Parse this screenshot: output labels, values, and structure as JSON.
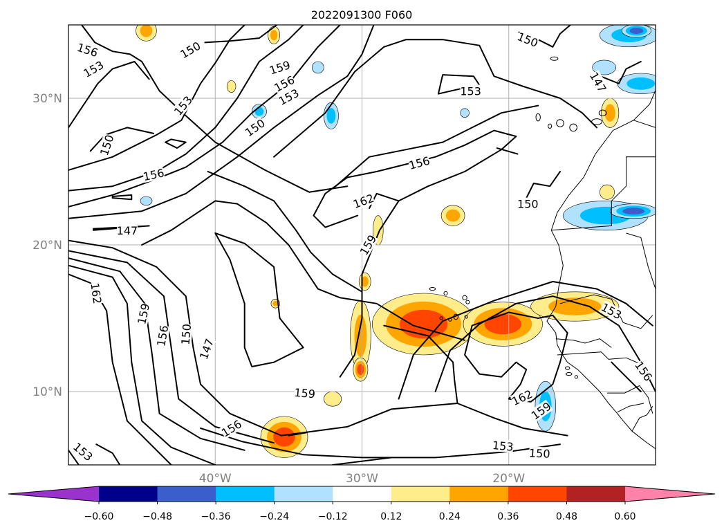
{
  "chart_data": {
    "type": "contour-map",
    "title": "2022091300 F060",
    "map": {
      "lon_range": [
        -50,
        -10
      ],
      "lat_range": [
        5,
        35
      ],
      "coastlines": true
    },
    "x_ticks": [
      {
        "value": -40,
        "label": "40°W"
      },
      {
        "value": -30,
        "label": "30°W"
      },
      {
        "value": -20,
        "label": "20°W"
      }
    ],
    "y_ticks": [
      {
        "value": 10,
        "label": "10°N"
      },
      {
        "value": 20,
        "label": "20°N"
      },
      {
        "value": 30,
        "label": "30°N"
      }
    ],
    "grid": true,
    "contour_levels": [
      147,
      150,
      153,
      156,
      159,
      162
    ],
    "contour_labels": [
      {
        "text": "156",
        "lon": -48.7,
        "lat": 33.3,
        "rot": 18
      },
      {
        "text": "153",
        "lon": -48.3,
        "lat": 32.0,
        "rot": -30
      },
      {
        "text": "150",
        "lon": -41.7,
        "lat": 33.3,
        "rot": -30
      },
      {
        "text": "159",
        "lon": -35.6,
        "lat": 32.1,
        "rot": -18
      },
      {
        "text": "156",
        "lon": -35.3,
        "lat": 31.0,
        "rot": -28
      },
      {
        "text": "153",
        "lon": -35.0,
        "lat": 30.1,
        "rot": -28
      },
      {
        "text": "153",
        "lon": -42.2,
        "lat": 29.5,
        "rot": -50
      },
      {
        "text": "150",
        "lon": -37.3,
        "lat": 28.0,
        "rot": -35
      },
      {
        "text": "150",
        "lon": -47.4,
        "lat": 26.8,
        "rot": -72
      },
      {
        "text": "156",
        "lon": -44.2,
        "lat": 24.8,
        "rot": -12
      },
      {
        "text": "147",
        "lon": -46.0,
        "lat": 21.0,
        "rot": 0
      },
      {
        "text": "150",
        "lon": -18.7,
        "lat": 34.0,
        "rot": 22
      },
      {
        "text": "153",
        "lon": -22.6,
        "lat": 30.5,
        "rot": 0
      },
      {
        "text": "147",
        "lon": -13.9,
        "lat": 31.1,
        "rot": 60
      },
      {
        "text": "156",
        "lon": -26.1,
        "lat": 25.6,
        "rot": -15
      },
      {
        "text": "162",
        "lon": -29.9,
        "lat": 23.0,
        "rot": -20
      },
      {
        "text": "150",
        "lon": -18.7,
        "lat": 22.8,
        "rot": 0
      },
      {
        "text": "159",
        "lon": -29.6,
        "lat": 20.0,
        "rot": -60
      },
      {
        "text": "162",
        "lon": -48.1,
        "lat": 16.7,
        "rot": 82
      },
      {
        "text": "159",
        "lon": -44.9,
        "lat": 15.3,
        "rot": -78
      },
      {
        "text": "156",
        "lon": -43.6,
        "lat": 13.8,
        "rot": -80
      },
      {
        "text": "150",
        "lon": -42.0,
        "lat": 13.9,
        "rot": -85
      },
      {
        "text": "147",
        "lon": -40.6,
        "lat": 12.9,
        "rot": -70
      },
      {
        "text": "153",
        "lon": -13.0,
        "lat": 15.5,
        "rot": 28
      },
      {
        "text": "156",
        "lon": -10.8,
        "lat": 11.4,
        "rot": 55
      },
      {
        "text": "159",
        "lon": -33.9,
        "lat": 9.9,
        "rot": 5
      },
      {
        "text": "156",
        "lon": -38.9,
        "lat": 7.5,
        "rot": -32
      },
      {
        "text": "162",
        "lon": -19.1,
        "lat": 9.6,
        "rot": -25
      },
      {
        "text": "159",
        "lon": -17.8,
        "lat": 8.7,
        "rot": -35
      },
      {
        "text": "153",
        "lon": -49.0,
        "lat": 5.9,
        "rot": 40
      },
      {
        "text": "153",
        "lon": -20.4,
        "lat": 6.3,
        "rot": 5
      },
      {
        "text": "150",
        "lon": -17.9,
        "lat": 5.8,
        "rot": 3
      }
    ],
    "shading": {
      "levels": [
        -0.6,
        -0.48,
        -0.36,
        -0.24,
        -0.12,
        0.12,
        0.24,
        0.36,
        0.48,
        0.6
      ],
      "colors": [
        "#9a32cd",
        "#00008b",
        "#3a5fcd",
        "#00bfff",
        "#b0e2ff",
        "#ffffff",
        "#ffec8b",
        "#ffa500",
        "#ff4500",
        "#b22222",
        "#ff82ab"
      ],
      "features": [
        {
          "lon": -25.8,
          "lat": 14.6,
          "rx": 3.5,
          "ry": 2.1,
          "value": 0.42
        },
        {
          "lon": -20.4,
          "lat": 14.6,
          "rx": 2.7,
          "ry": 1.5,
          "value": 0.38
        },
        {
          "lon": -15.5,
          "lat": 15.8,
          "rx": 3.0,
          "ry": 1.0,
          "value": 0.34
        },
        {
          "lon": -30.1,
          "lat": 13.8,
          "rx": 0.7,
          "ry": 2.4,
          "value": 0.3
        },
        {
          "lon": -30.1,
          "lat": 11.5,
          "rx": 0.5,
          "ry": 0.8,
          "value": 0.38
        },
        {
          "lon": -29.8,
          "lat": 17.5,
          "rx": 0.4,
          "ry": 0.6,
          "value": 0.3
        },
        {
          "lon": -28.9,
          "lat": 21.0,
          "rx": 0.35,
          "ry": 1.0,
          "value": 0.22
        },
        {
          "lon": -35.3,
          "lat": 6.9,
          "rx": 1.6,
          "ry": 1.4,
          "value": 0.42
        },
        {
          "lon": -44.7,
          "lat": 34.6,
          "rx": 0.7,
          "ry": 0.7,
          "value": 0.34
        },
        {
          "lon": -36.0,
          "lat": 34.3,
          "rx": 0.4,
          "ry": 0.6,
          "value": 0.25
        },
        {
          "lon": -38.9,
          "lat": 30.8,
          "rx": 0.3,
          "ry": 0.4,
          "value": 0.2
        },
        {
          "lon": -35.9,
          "lat": 16.0,
          "rx": 0.3,
          "ry": 0.3,
          "value": 0.25
        },
        {
          "lon": -32.0,
          "lat": 9.5,
          "rx": 0.6,
          "ry": 0.5,
          "value": 0.2
        },
        {
          "lon": -23.8,
          "lat": 22.0,
          "rx": 0.8,
          "ry": 0.7,
          "value": 0.3
        },
        {
          "lon": -13.1,
          "lat": 29.0,
          "rx": 0.6,
          "ry": 1.0,
          "value": 0.3
        },
        {
          "lon": -13.3,
          "lat": 23.6,
          "rx": 0.5,
          "ry": 0.5,
          "value": 0.15
        },
        {
          "lon": -13.4,
          "lat": 22.0,
          "rx": 2.9,
          "ry": 1.0,
          "value": -0.3
        },
        {
          "lon": -11.5,
          "lat": 22.3,
          "rx": 1.6,
          "ry": 0.5,
          "value": -0.4
        },
        {
          "lon": -11.8,
          "lat": 34.3,
          "rx": 2.0,
          "ry": 0.8,
          "value": -0.3
        },
        {
          "lon": -11.3,
          "lat": 34.6,
          "rx": 1.0,
          "ry": 0.45,
          "value": -0.42
        },
        {
          "lon": -11.0,
          "lat": 31.0,
          "rx": 1.6,
          "ry": 0.7,
          "value": -0.28
        },
        {
          "lon": -13.5,
          "lat": 32.1,
          "rx": 0.8,
          "ry": 0.5,
          "value": -0.2
        },
        {
          "lon": -17.5,
          "lat": 9.0,
          "rx": 0.7,
          "ry": 1.7,
          "value": -0.3
        },
        {
          "lon": -32.1,
          "lat": 28.8,
          "rx": 0.5,
          "ry": 0.9,
          "value": -0.3
        },
        {
          "lon": -33.0,
          "lat": 32.1,
          "rx": 0.4,
          "ry": 0.4,
          "value": -0.2
        },
        {
          "lon": -37.0,
          "lat": 29.1,
          "rx": 0.5,
          "ry": 0.5,
          "value": -0.25
        },
        {
          "lon": -44.7,
          "lat": 23.0,
          "rx": 0.4,
          "ry": 0.3,
          "value": -0.22
        },
        {
          "lon": -23.0,
          "lat": 29.0,
          "rx": 0.3,
          "ry": 0.3,
          "value": -0.15
        }
      ]
    },
    "colorbar": {
      "tick_values": [
        -0.6,
        -0.48,
        -0.36,
        -0.24,
        -0.12,
        0.12,
        0.24,
        0.36,
        0.48,
        0.6
      ],
      "tick_labels": [
        "−0.60",
        "−0.48",
        "−0.36",
        "−0.24",
        "−0.12",
        "0.12",
        "0.24",
        "0.36",
        "0.48",
        "0.60"
      ],
      "extend": "both"
    }
  }
}
